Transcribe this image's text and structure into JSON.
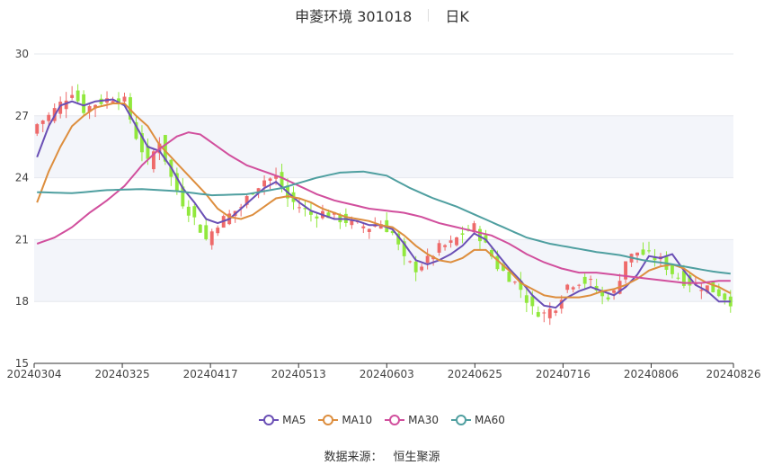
{
  "header": {
    "title": "申菱环境 301018",
    "period": "日K"
  },
  "source": {
    "label": "数据来源：",
    "name": "恒生聚源"
  },
  "colors": {
    "up": "#ee6a6a",
    "down": "#91e83d",
    "grid_band": "#f3f5fa"
  },
  "chart_data": {
    "type": "candlestick",
    "title": "申菱环境 301018",
    "period": "日K",
    "ylim": [
      15,
      30
    ],
    "y_ticks": [
      15,
      18,
      21,
      24,
      27,
      30
    ],
    "x_ticks": [
      "20240304",
      "20240325",
      "20240417",
      "20240513",
      "20240603",
      "20240625",
      "20240716",
      "20240806",
      "20240826"
    ],
    "x_tick_index": [
      0,
      15,
      30,
      45,
      60,
      75,
      90,
      105,
      119
    ],
    "n_days": 120,
    "legend": [
      "MA5",
      "MA10",
      "MA30",
      "MA60"
    ],
    "series": [
      {
        "name": "MA5",
        "color": "#6a4fb5",
        "keys": [
          [
            0,
            25.0
          ],
          [
            2,
            26.5
          ],
          [
            4,
            27.5
          ],
          [
            6,
            27.7
          ],
          [
            8,
            27.5
          ],
          [
            10,
            27.7
          ],
          [
            13,
            27.8
          ],
          [
            15,
            27.5
          ],
          [
            17,
            26.5
          ],
          [
            19,
            25.5
          ],
          [
            21,
            25.3
          ],
          [
            23,
            24.5
          ],
          [
            25,
            23.5
          ],
          [
            27,
            22.8
          ],
          [
            29,
            22.0
          ],
          [
            31,
            21.8
          ],
          [
            33,
            22.0
          ],
          [
            35,
            22.5
          ],
          [
            37,
            23.0
          ],
          [
            39,
            23.5
          ],
          [
            41,
            23.8
          ],
          [
            43,
            23.3
          ],
          [
            45,
            22.8
          ],
          [
            47,
            22.4
          ],
          [
            49,
            22.2
          ],
          [
            51,
            22.0
          ],
          [
            53,
            22.0
          ],
          [
            55,
            21.9
          ],
          [
            57,
            21.7
          ],
          [
            59,
            21.7
          ],
          [
            61,
            21.5
          ],
          [
            63,
            20.8
          ],
          [
            65,
            20.0
          ],
          [
            67,
            19.8
          ],
          [
            69,
            20.0
          ],
          [
            71,
            20.3
          ],
          [
            73,
            20.7
          ],
          [
            75,
            21.3
          ],
          [
            77,
            21.0
          ],
          [
            79,
            20.3
          ],
          [
            81,
            19.6
          ],
          [
            83,
            19.0
          ],
          [
            85,
            18.3
          ],
          [
            87,
            17.8
          ],
          [
            89,
            17.7
          ],
          [
            91,
            18.2
          ],
          [
            93,
            18.5
          ],
          [
            95,
            18.7
          ],
          [
            97,
            18.5
          ],
          [
            99,
            18.3
          ],
          [
            101,
            18.7
          ],
          [
            103,
            19.3
          ],
          [
            105,
            20.2
          ],
          [
            107,
            20.1
          ],
          [
            109,
            20.3
          ],
          [
            111,
            19.5
          ],
          [
            113,
            18.8
          ],
          [
            115,
            18.5
          ],
          [
            117,
            18.0
          ],
          [
            119,
            18.0
          ]
        ]
      },
      {
        "name": "MA10",
        "color": "#dd8e3e",
        "keys": [
          [
            0,
            22.8
          ],
          [
            2,
            24.3
          ],
          [
            4,
            25.5
          ],
          [
            6,
            26.5
          ],
          [
            8,
            27.0
          ],
          [
            10,
            27.4
          ],
          [
            13,
            27.6
          ],
          [
            15,
            27.6
          ],
          [
            17,
            27.0
          ],
          [
            19,
            26.5
          ],
          [
            21,
            25.6
          ],
          [
            23,
            25.0
          ],
          [
            25,
            24.4
          ],
          [
            27,
            23.8
          ],
          [
            29,
            23.2
          ],
          [
            31,
            22.5
          ],
          [
            33,
            22.1
          ],
          [
            35,
            22.0
          ],
          [
            37,
            22.2
          ],
          [
            39,
            22.6
          ],
          [
            41,
            23.0
          ],
          [
            43,
            23.1
          ],
          [
            45,
            23.0
          ],
          [
            47,
            22.8
          ],
          [
            49,
            22.5
          ],
          [
            51,
            22.3
          ],
          [
            53,
            22.1
          ],
          [
            55,
            22.0
          ],
          [
            57,
            21.9
          ],
          [
            59,
            21.7
          ],
          [
            61,
            21.6
          ],
          [
            63,
            21.2
          ],
          [
            65,
            20.7
          ],
          [
            67,
            20.3
          ],
          [
            69,
            20.0
          ],
          [
            71,
            19.9
          ],
          [
            73,
            20.1
          ],
          [
            75,
            20.5
          ],
          [
            77,
            20.5
          ],
          [
            79,
            20.0
          ],
          [
            81,
            19.5
          ],
          [
            83,
            18.9
          ],
          [
            85,
            18.6
          ],
          [
            87,
            18.3
          ],
          [
            89,
            18.2
          ],
          [
            91,
            18.2
          ],
          [
            93,
            18.2
          ],
          [
            95,
            18.3
          ],
          [
            97,
            18.5
          ],
          [
            99,
            18.6
          ],
          [
            101,
            18.8
          ],
          [
            103,
            19.1
          ],
          [
            105,
            19.5
          ],
          [
            107,
            19.7
          ],
          [
            109,
            19.8
          ],
          [
            111,
            19.6
          ],
          [
            113,
            19.2
          ],
          [
            115,
            18.9
          ],
          [
            117,
            18.7
          ],
          [
            119,
            18.4
          ]
        ]
      },
      {
        "name": "MA30",
        "color": "#d14f9d",
        "keys": [
          [
            0,
            20.8
          ],
          [
            3,
            21.1
          ],
          [
            6,
            21.6
          ],
          [
            9,
            22.3
          ],
          [
            12,
            22.9
          ],
          [
            15,
            23.6
          ],
          [
            18,
            24.6
          ],
          [
            21,
            25.4
          ],
          [
            24,
            26.0
          ],
          [
            26,
            26.2
          ],
          [
            28,
            26.1
          ],
          [
            30,
            25.7
          ],
          [
            33,
            25.1
          ],
          [
            36,
            24.6
          ],
          [
            39,
            24.3
          ],
          [
            42,
            24.0
          ],
          [
            45,
            23.6
          ],
          [
            48,
            23.2
          ],
          [
            51,
            22.9
          ],
          [
            54,
            22.7
          ],
          [
            57,
            22.5
          ],
          [
            60,
            22.4
          ],
          [
            63,
            22.3
          ],
          [
            66,
            22.1
          ],
          [
            69,
            21.8
          ],
          [
            72,
            21.6
          ],
          [
            75,
            21.4
          ],
          [
            78,
            21.2
          ],
          [
            81,
            20.8
          ],
          [
            84,
            20.3
          ],
          [
            87,
            19.9
          ],
          [
            90,
            19.6
          ],
          [
            93,
            19.4
          ],
          [
            96,
            19.4
          ],
          [
            99,
            19.3
          ],
          [
            102,
            19.2
          ],
          [
            105,
            19.1
          ],
          [
            108,
            19.0
          ],
          [
            111,
            18.9
          ],
          [
            114,
            18.9
          ],
          [
            117,
            19.0
          ],
          [
            119,
            19.0
          ]
        ]
      },
      {
        "name": "MA60",
        "color": "#4f9fa0",
        "keys": [
          [
            0,
            23.3
          ],
          [
            6,
            23.25
          ],
          [
            12,
            23.4
          ],
          [
            18,
            23.45
          ],
          [
            24,
            23.35
          ],
          [
            30,
            23.15
          ],
          [
            36,
            23.2
          ],
          [
            42,
            23.5
          ],
          [
            48,
            24.0
          ],
          [
            52,
            24.25
          ],
          [
            56,
            24.3
          ],
          [
            60,
            24.1
          ],
          [
            64,
            23.5
          ],
          [
            68,
            23.0
          ],
          [
            72,
            22.6
          ],
          [
            76,
            22.1
          ],
          [
            80,
            21.6
          ],
          [
            84,
            21.1
          ],
          [
            88,
            20.8
          ],
          [
            92,
            20.6
          ],
          [
            96,
            20.4
          ],
          [
            100,
            20.25
          ],
          [
            104,
            20.0
          ],
          [
            108,
            19.85
          ],
          [
            112,
            19.65
          ],
          [
            116,
            19.45
          ],
          [
            119,
            19.35
          ]
        ]
      }
    ],
    "candle_path": [
      [
        0,
        26.6
      ],
      [
        2,
        27.0
      ],
      [
        4,
        27.6
      ],
      [
        6,
        28.2
      ],
      [
        8,
        27.3
      ],
      [
        10,
        27.6
      ],
      [
        13,
        27.9
      ],
      [
        15,
        27.7
      ],
      [
        17,
        26.0
      ],
      [
        19,
        24.7
      ],
      [
        21,
        25.8
      ],
      [
        23,
        24.0
      ],
      [
        25,
        22.8
      ],
      [
        27,
        22.0
      ],
      [
        29,
        21.0
      ],
      [
        31,
        21.8
      ],
      [
        33,
        22.2
      ],
      [
        35,
        22.6
      ],
      [
        37,
        23.4
      ],
      [
        39,
        23.9
      ],
      [
        41,
        24.0
      ],
      [
        43,
        23.0
      ],
      [
        45,
        22.6
      ],
      [
        47,
        22.2
      ],
      [
        49,
        22.3
      ],
      [
        51,
        22.1
      ],
      [
        53,
        21.9
      ],
      [
        55,
        21.7
      ],
      [
        57,
        21.6
      ],
      [
        59,
        21.8
      ],
      [
        61,
        21.3
      ],
      [
        63,
        20.0
      ],
      [
        65,
        19.6
      ],
      [
        67,
        20.0
      ],
      [
        69,
        20.6
      ],
      [
        71,
        20.8
      ],
      [
        73,
        21.3
      ],
      [
        75,
        21.6
      ],
      [
        77,
        20.7
      ],
      [
        79,
        19.7
      ],
      [
        81,
        19.2
      ],
      [
        83,
        18.6
      ],
      [
        85,
        17.6
      ],
      [
        87,
        17.4
      ],
      [
        89,
        17.8
      ],
      [
        91,
        18.8
      ],
      [
        93,
        19.0
      ],
      [
        95,
        18.9
      ],
      [
        97,
        18.2
      ],
      [
        99,
        18.4
      ],
      [
        101,
        20.0
      ],
      [
        103,
        20.4
      ],
      [
        105,
        20.2
      ],
      [
        107,
        20.0
      ],
      [
        109,
        19.4
      ],
      [
        111,
        19.0
      ],
      [
        113,
        18.8
      ],
      [
        115,
        18.7
      ],
      [
        117,
        18.4
      ],
      [
        119,
        18.0
      ]
    ]
  }
}
